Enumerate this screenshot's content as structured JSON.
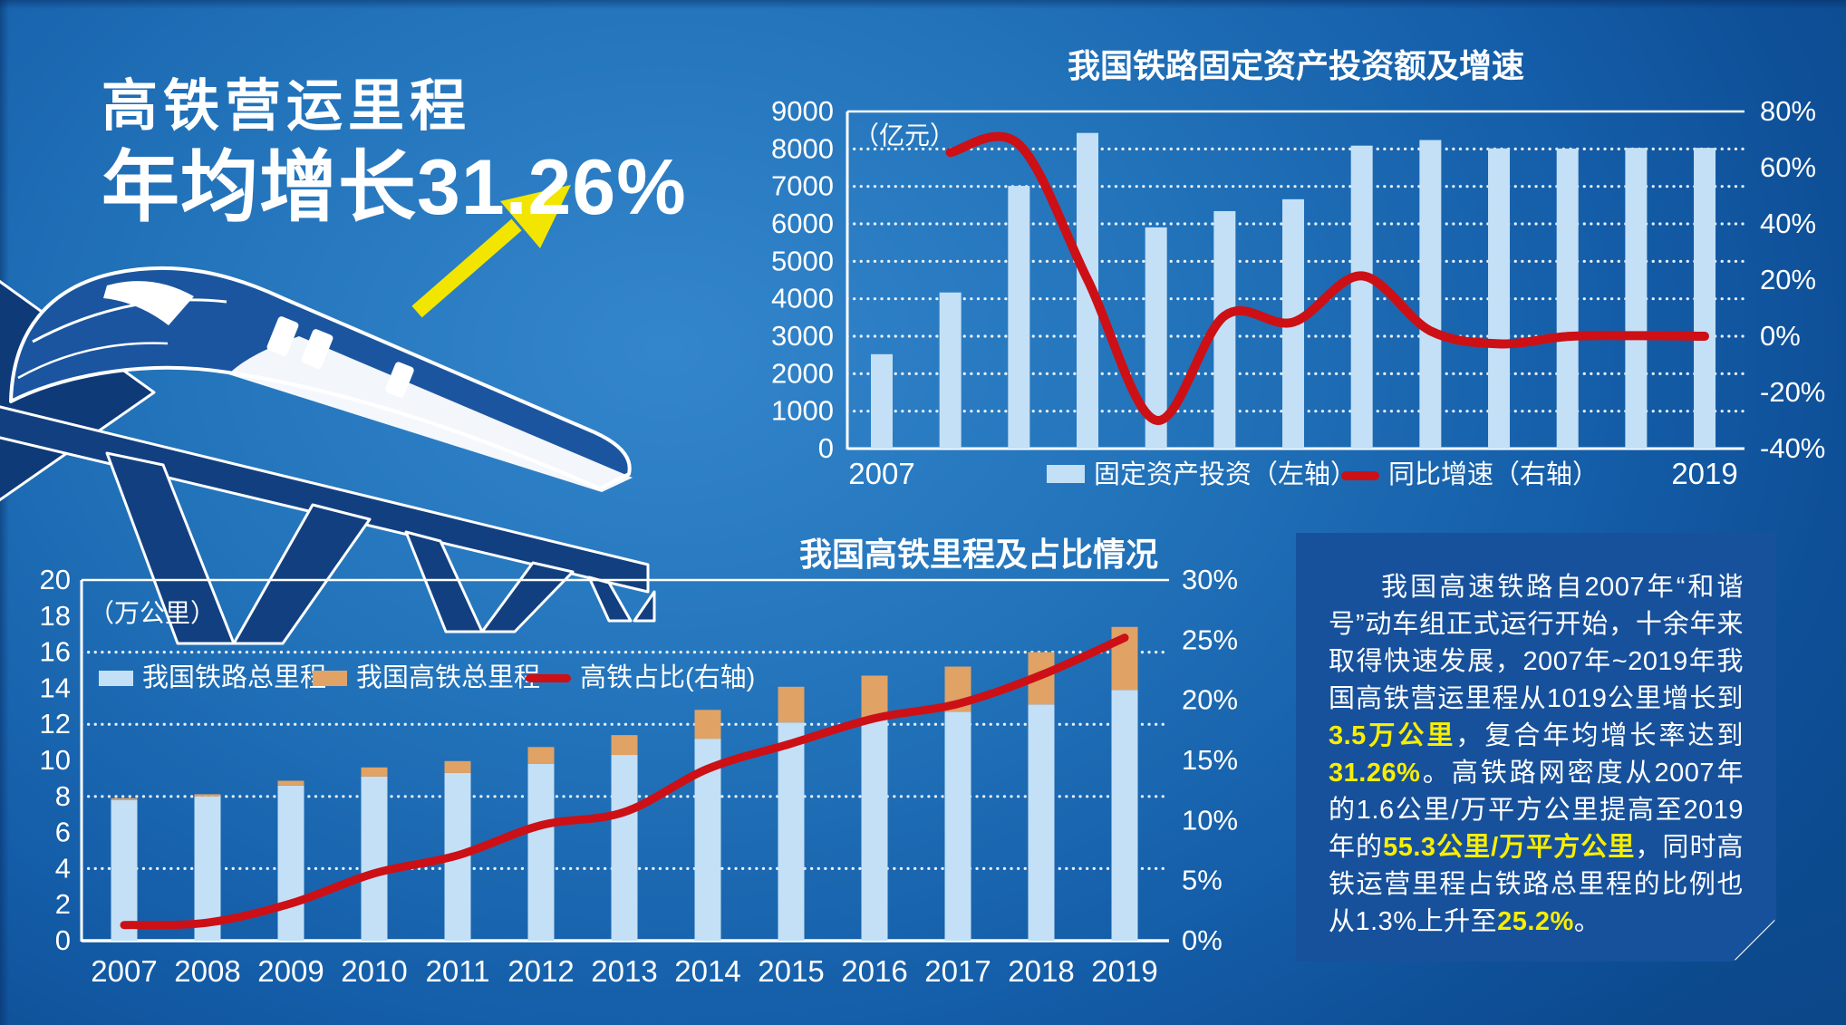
{
  "header": {
    "line1": "高铁营运里程",
    "line2": "年均增长31.26%"
  },
  "colors": {
    "background_blue": "#1e6cb4",
    "bar_light_blue": "#c3e0f6",
    "bar_orange": "#e0a265",
    "line_red": "#cc1016",
    "accent_yellow": "#f6ea00",
    "panel_blue": "#17519c"
  },
  "chart_data": [
    {
      "type": "bar",
      "subtype": "bar+line dual axis",
      "title": "我国铁路固定资产投资额及增速",
      "categories": [
        "2007",
        "2008",
        "2009",
        "2010",
        "2011",
        "2012",
        "2013",
        "2014",
        "2015",
        "2016",
        "2017",
        "2018",
        "2019"
      ],
      "x_axis_shown_labels": [
        "2007",
        "2019"
      ],
      "left_axis": {
        "label": "（亿元）",
        "min": 0,
        "max": 9000,
        "step": 1000
      },
      "right_axis": {
        "min": -40,
        "max": 80,
        "step": 20,
        "suffix": "%"
      },
      "bars": {
        "legend": "固定资产投资（左轴）",
        "color": "#c3e0f6",
        "values": [
          2520,
          4168,
          7013,
          8427,
          5906,
          6340,
          6657,
          8088,
          8238,
          8015,
          8010,
          8028,
          8029
        ]
      },
      "line": {
        "legend": "同比增速（右轴）",
        "color": "#cc1016",
        "values_pct": [
          null,
          65.4,
          68.3,
          20.2,
          -29.9,
          7.3,
          5.0,
          21.5,
          1.9,
          -2.7,
          -0.1,
          0.2,
          0.0
        ]
      },
      "grid": "dotted horizontal, solid top line",
      "legend_position": "bottom"
    },
    {
      "type": "bar",
      "subtype": "stacked-bar+line dual axis",
      "title": "我国高铁里程及占比情况",
      "categories": [
        "2007",
        "2008",
        "2009",
        "2010",
        "2011",
        "2012",
        "2013",
        "2014",
        "2015",
        "2016",
        "2017",
        "2018",
        "2019"
      ],
      "left_axis": {
        "label": "（万公里）",
        "min": 0,
        "max": 20,
        "step": 2
      },
      "right_axis": {
        "min": 0,
        "max": 30,
        "step": 5,
        "suffix": "%"
      },
      "stacks": [
        {
          "legend": "我国铁路总里程",
          "color": "#c3e0f6",
          "values": [
            7.8,
            8.0,
            8.6,
            9.1,
            9.3,
            9.8,
            10.3,
            11.2,
            12.1,
            12.4,
            12.7,
            13.1,
            13.9
          ]
        },
        {
          "legend": "我国高铁总里程",
          "color": "#e0a265",
          "values": [
            0.1,
            0.12,
            0.27,
            0.51,
            0.66,
            0.94,
            1.1,
            1.6,
            1.98,
            2.3,
            2.5,
            2.9,
            3.5
          ]
        }
      ],
      "line": {
        "legend": "高铁占比(右轴)",
        "color": "#cc1016",
        "values_pct": [
          1.3,
          1.5,
          3.1,
          5.6,
          7.1,
          9.6,
          10.7,
          14.3,
          16.4,
          18.5,
          19.7,
          22.1,
          25.2
        ]
      },
      "grid": "dotted horizontal at 4/8/12/16, solid top line",
      "legend_position": "inside top-left"
    }
  ],
  "note": {
    "segments": [
      {
        "t": "我国高速铁路自2007年“和谐号”动车组正式运行开始，十余年来取得快速发展，2007年~2019年我国高铁营运里程从1019公里增长到",
        "h": false
      },
      {
        "t": "3.5万公里",
        "h": true
      },
      {
        "t": "，复合年均增长率达到",
        "h": false
      },
      {
        "t": "31.26%",
        "h": true
      },
      {
        "t": "。高铁路网密度从2007年的1.6公里/万平方公里提高至2019年的",
        "h": false
      },
      {
        "t": "55.3公里/万平方公里",
        "h": true
      },
      {
        "t": "，同时高铁运营里程占铁路总里程的比例也从1.3%上升至",
        "h": false
      },
      {
        "t": "25.2%",
        "h": true
      },
      {
        "t": "。",
        "h": false
      }
    ]
  }
}
